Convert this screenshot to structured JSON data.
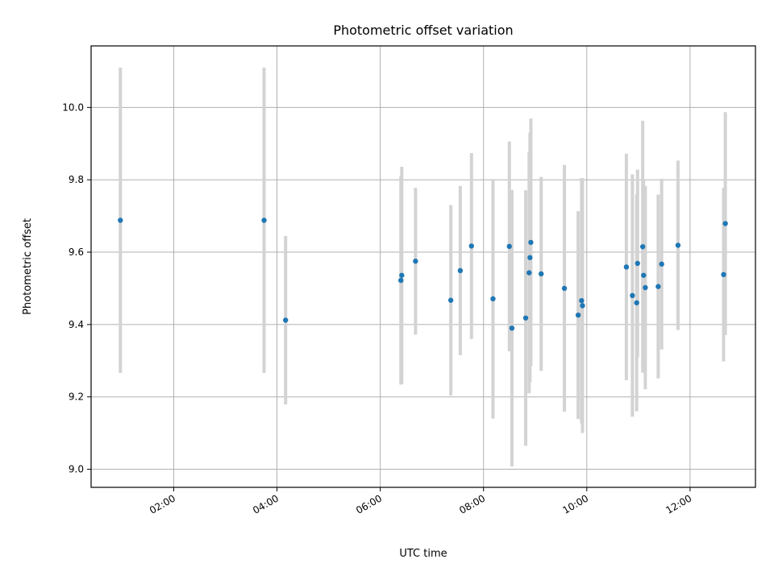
{
  "chart_data": {
    "type": "scatter",
    "title": "Photometric offset variation",
    "xlabel": "UTC time",
    "ylabel": "Photometric offset",
    "x_tick_labels": [
      "02:00",
      "04:00",
      "06:00",
      "08:00",
      "10:00",
      "12:00"
    ],
    "x_tick_times": [
      "02:00",
      "04:00",
      "06:00",
      "08:00",
      "10:00",
      "12:00"
    ],
    "xlim": [
      "00:24",
      "13:16"
    ],
    "y_tick_labels": [
      "9.0",
      "9.2",
      "9.4",
      "9.6",
      "9.8",
      "10.0"
    ],
    "y_tick_values": [
      9.0,
      9.2,
      9.4,
      9.6,
      9.8,
      10.0
    ],
    "ylim": [
      8.95,
      10.17
    ],
    "grid": true,
    "colors": {
      "points": "#1f77b4",
      "errorbars": "#d3d3d3",
      "grid": "#b0b0b0"
    },
    "points": [
      {
        "x": "00:58",
        "y": 9.688,
        "err": 0.422
      },
      {
        "x": "03:45",
        "y": 9.688,
        "err": 0.422
      },
      {
        "x": "04:10",
        "y": 9.412,
        "err": 0.233
      },
      {
        "x": "06:24",
        "y": 9.522,
        "err": 0.288
      },
      {
        "x": "06:25",
        "y": 9.536,
        "err": 0.3
      },
      {
        "x": "06:41",
        "y": 9.575,
        "err": 0.203
      },
      {
        "x": "07:22",
        "y": 9.467,
        "err": 0.263
      },
      {
        "x": "07:33",
        "y": 9.549,
        "err": 0.234
      },
      {
        "x": "07:46",
        "y": 9.617,
        "err": 0.257
      },
      {
        "x": "08:11",
        "y": 9.471,
        "err": 0.331
      },
      {
        "x": "08:30",
        "y": 9.616,
        "err": 0.29
      },
      {
        "x": "08:33",
        "y": 9.39,
        "err": 0.382
      },
      {
        "x": "08:49",
        "y": 9.418,
        "err": 0.353
      },
      {
        "x": "08:53",
        "y": 9.543,
        "err": 0.333
      },
      {
        "x": "08:54",
        "y": 9.585,
        "err": 0.345
      },
      {
        "x": "08:55",
        "y": 9.627,
        "err": 0.342
      },
      {
        "x": "09:07",
        "y": 9.54,
        "err": 0.268
      },
      {
        "x": "09:34",
        "y": 9.5,
        "err": 0.341
      },
      {
        "x": "09:50",
        "y": 9.426,
        "err": 0.287
      },
      {
        "x": "09:54",
        "y": 9.466,
        "err": 0.339
      },
      {
        "x": "09:55",
        "y": 9.452,
        "err": 0.352
      },
      {
        "x": "10:46",
        "y": 9.559,
        "err": 0.313
      },
      {
        "x": "10:53",
        "y": 9.48,
        "err": 0.335
      },
      {
        "x": "10:58",
        "y": 9.46,
        "err": 0.3
      },
      {
        "x": "10:59",
        "y": 9.569,
        "err": 0.259
      },
      {
        "x": "11:05",
        "y": 9.615,
        "err": 0.348
      },
      {
        "x": "11:06",
        "y": 9.536,
        "err": 0.265
      },
      {
        "x": "11:08",
        "y": 9.502,
        "err": 0.281
      },
      {
        "x": "11:23",
        "y": 9.505,
        "err": 0.254
      },
      {
        "x": "11:27",
        "y": 9.567,
        "err": 0.236
      },
      {
        "x": "11:46",
        "y": 9.619,
        "err": 0.234
      },
      {
        "x": "12:39",
        "y": 9.538,
        "err": 0.24
      },
      {
        "x": "12:41",
        "y": 9.679,
        "err": 0.308
      }
    ]
  }
}
